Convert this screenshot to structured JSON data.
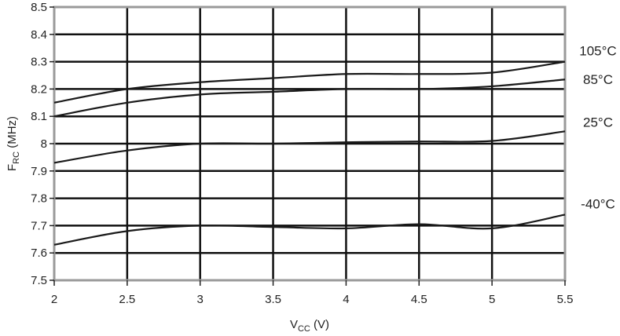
{
  "chart_data": {
    "type": "line",
    "xlabel": {
      "main": "V",
      "sub": "CC",
      "unit": " (V)"
    },
    "ylabel": {
      "main": "F",
      "sub": "RC",
      "unit": " (MHz)"
    },
    "xlim": [
      2,
      5.5
    ],
    "ylim": [
      7.5,
      8.5
    ],
    "x_ticks": [
      "2",
      "2.5",
      "3",
      "3.5",
      "4",
      "4.5",
      "5",
      "5.5"
    ],
    "y_ticks": [
      "7.5",
      "7.6",
      "7.7",
      "7.8",
      "7.9",
      "8",
      "8.1",
      "8.2",
      "8.3",
      "8.4",
      "8.5"
    ],
    "grid": true,
    "x": [
      2,
      2.5,
      3,
      3.5,
      4,
      4.5,
      5,
      5.5
    ],
    "series": [
      {
        "name": "105°C",
        "values": [
          8.15,
          8.2,
          8.225,
          8.24,
          8.255,
          8.255,
          8.26,
          8.3
        ]
      },
      {
        "name": "85°C",
        "values": [
          8.1,
          8.15,
          8.18,
          8.19,
          8.2,
          8.2,
          8.21,
          8.235
        ]
      },
      {
        "name": "25°C",
        "values": [
          7.93,
          7.975,
          8.0,
          8.0,
          8.005,
          8.008,
          8.01,
          8.045
        ]
      },
      {
        "name": "-40°C",
        "values": [
          7.63,
          7.68,
          7.7,
          7.695,
          7.69,
          7.705,
          7.69,
          7.74
        ]
      }
    ],
    "line_color": "#1a1a1a",
    "grid_color": "#111111",
    "frame_color": "#9a9a9a"
  }
}
